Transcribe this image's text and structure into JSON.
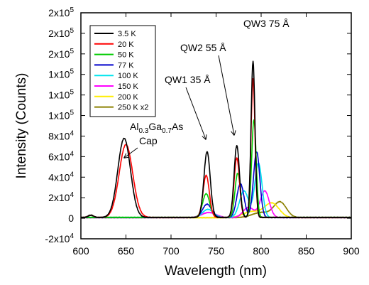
{
  "chart_data": {
    "type": "line",
    "xlabel": "Wavelength (nm)",
    "ylabel": "Intensity (Counts)",
    "xlim": [
      600,
      900
    ],
    "ylim": [
      -20000,
      200000
    ],
    "xticks": [
      {
        "v": 600,
        "label": "600"
      },
      {
        "v": 650,
        "label": "650"
      },
      {
        "v": 700,
        "label": "700"
      },
      {
        "v": 750,
        "label": "750"
      },
      {
        "v": 800,
        "label": "800"
      },
      {
        "v": 850,
        "label": "850"
      },
      {
        "v": 900,
        "label": "900"
      }
    ],
    "yticks": [
      {
        "v": 200000,
        "mant": "2x10",
        "exp": "5"
      },
      {
        "v": 180000,
        "mant": "2x10",
        "exp": "5"
      },
      {
        "v": 160000,
        "mant": "2x10",
        "exp": "5"
      },
      {
        "v": 140000,
        "mant": "1x10",
        "exp": "5"
      },
      {
        "v": 120000,
        "mant": "1x10",
        "exp": "5"
      },
      {
        "v": 100000,
        "mant": "1x10",
        "exp": "5"
      },
      {
        "v": 80000,
        "mant": "8x10",
        "exp": "4"
      },
      {
        "v": 60000,
        "mant": "6x10",
        "exp": "4"
      },
      {
        "v": 40000,
        "mant": "4x10",
        "exp": "4"
      },
      {
        "v": 20000,
        "mant": "2x10",
        "exp": "4"
      },
      {
        "v": 0,
        "mant": "0",
        "exp": ""
      },
      {
        "v": -20000,
        "mant": "-2x10",
        "exp": "4"
      }
    ],
    "grid": false,
    "legend_placement": "top-left",
    "series": [
      {
        "name": "3.5 K",
        "color": "#000000",
        "baseline": 800,
        "peaks": [
          [
            611,
            2200,
            3
          ],
          [
            648,
            77000,
            7
          ],
          [
            740,
            64000,
            3.5
          ],
          [
            773,
            70000,
            3
          ],
          [
            791,
            152000,
            2.2
          ]
        ]
      },
      {
        "name": "20 K",
        "color": "#ff0000",
        "baseline": 800,
        "peaks": [
          [
            611,
            2200,
            3
          ],
          [
            650,
            71000,
            7.5
          ],
          [
            739,
            41000,
            3.5
          ],
          [
            773,
            58000,
            3
          ],
          [
            791,
            135000,
            2.2
          ]
        ]
      },
      {
        "name": "50 K",
        "color": "#00cc00",
        "baseline": 900,
        "peaks": [
          [
            739,
            23000,
            4
          ],
          [
            774,
            43000,
            3
          ],
          [
            792,
            95000,
            2.5
          ]
        ]
      },
      {
        "name": "77 K",
        "color": "#0000cc",
        "baseline": 700,
        "peaks": [
          [
            740,
            13000,
            5
          ],
          [
            777,
            33000,
            4
          ],
          [
            795,
            64000,
            3.5
          ]
        ]
      },
      {
        "name": "100 K",
        "color": "#00e5ee",
        "baseline": 700,
        "peaks": [
          [
            741,
            8000,
            6
          ],
          [
            781,
            26000,
            5
          ],
          [
            797,
            53000,
            4
          ]
        ]
      },
      {
        "name": "150 K",
        "color": "#ff00ff",
        "baseline": 600,
        "peaks": [
          [
            742,
            5000,
            8
          ],
          [
            786,
            10000,
            6
          ],
          [
            804,
            26000,
            5
          ]
        ]
      },
      {
        "name": "200 K",
        "color": "#ffee00",
        "baseline": 500,
        "peaks": [
          [
            790,
            6000,
            10
          ],
          [
            812,
            14000,
            8
          ]
        ]
      },
      {
        "name": "250 K x2",
        "color": "#8b8000",
        "baseline": 600,
        "peaks": [
          [
            800,
            5000,
            10
          ],
          [
            821,
            15000,
            7
          ]
        ]
      }
    ],
    "annotations": [
      {
        "parts": [
          [
            "Al",
            ""
          ],
          [
            "0.3",
            "sub"
          ],
          [
            "Ga",
            ""
          ],
          [
            "0.7",
            "sub"
          ],
          [
            "As",
            ""
          ]
        ],
        "line2": "Cap"
      },
      {
        "text": "QW1 35 Å"
      },
      {
        "text": "QW2 55 Å"
      },
      {
        "text": "QW3 75 Å"
      }
    ]
  }
}
